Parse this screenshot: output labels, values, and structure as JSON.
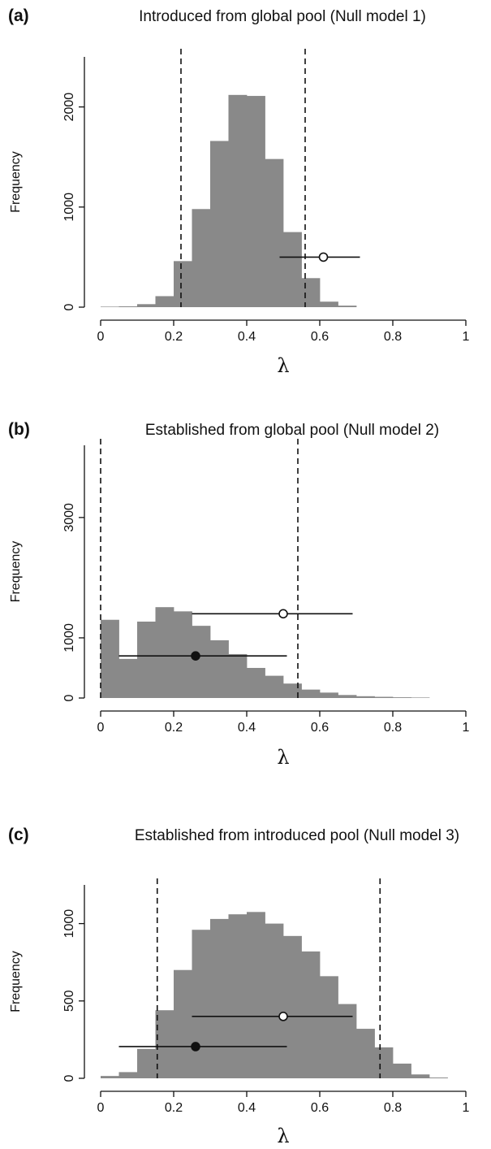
{
  "chart_data": [
    {
      "type": "bar",
      "letter": "(a)",
      "title": "Introduced from global pool (Null model 1)",
      "ylabel": "Frequency",
      "xlabel": "λ",
      "xlim": [
        0,
        1
      ],
      "ylim": [
        0,
        2500
      ],
      "xticks": [
        0,
        0.2,
        0.4,
        0.6,
        0.8,
        1
      ],
      "xtick_labels": [
        "0",
        "0.2",
        "0.4",
        "0.6",
        "0.8",
        "1"
      ],
      "yticks": [
        0,
        1000,
        2000
      ],
      "ytick_labels": [
        "0",
        "1000",
        "2000"
      ],
      "bin_start": 0.0,
      "bin_width": 0.05,
      "counts": [
        5,
        8,
        30,
        110,
        460,
        980,
        1660,
        2120,
        2110,
        1480,
        750,
        290,
        55,
        15
      ],
      "dashed_lines": [
        0.22,
        0.56
      ],
      "points": [
        {
          "x": 0.61,
          "y": 500,
          "xmin": 0.49,
          "xmax": 0.71,
          "filled": false
        }
      ]
    },
    {
      "type": "bar",
      "letter": "(b)",
      "title": "Established from global pool (Null model 2)",
      "ylabel": "Frequency",
      "xlabel": "λ",
      "xlim": [
        0,
        1
      ],
      "ylim": [
        0,
        4200
      ],
      "xticks": [
        0,
        0.2,
        0.4,
        0.6,
        0.8,
        1
      ],
      "xtick_labels": [
        "0",
        "0.2",
        "0.4",
        "0.6",
        "0.8",
        "1"
      ],
      "yticks": [
        0,
        1000,
        3000
      ],
      "ytick_labels": [
        "0",
        "1000",
        "3000"
      ],
      "bin_start": 0.0,
      "bin_width": 0.05,
      "counts": [
        1300,
        650,
        1270,
        1510,
        1440,
        1200,
        960,
        730,
        500,
        370,
        240,
        140,
        90,
        50,
        30,
        20,
        12,
        8
      ],
      "dashed_lines": [
        0.0,
        0.54
      ],
      "points": [
        {
          "x": 0.5,
          "y": 1400,
          "xmin": 0.25,
          "xmax": 0.69,
          "filled": false
        },
        {
          "x": 0.26,
          "y": 700,
          "xmin": 0.05,
          "xmax": 0.51,
          "filled": true
        }
      ]
    },
    {
      "type": "bar",
      "letter": "(c)",
      "title": "Established from introduced pool (Null model 3)",
      "ylabel": "Frequency",
      "xlabel": "λ",
      "xlim": [
        0,
        1
      ],
      "ylim": [
        0,
        1250
      ],
      "xticks": [
        0,
        0.2,
        0.4,
        0.6,
        0.8,
        1
      ],
      "xtick_labels": [
        "0",
        "0.2",
        "0.4",
        "0.6",
        "0.8",
        "1"
      ],
      "yticks": [
        0,
        500,
        1000
      ],
      "ytick_labels": [
        "0",
        "500",
        "1000"
      ],
      "bin_start": 0.0,
      "bin_width": 0.05,
      "counts": [
        15,
        40,
        190,
        440,
        700,
        960,
        1030,
        1060,
        1075,
        1000,
        920,
        820,
        660,
        480,
        320,
        200,
        95,
        25,
        5
      ],
      "dashed_lines": [
        0.155,
        0.765
      ],
      "points": [
        {
          "x": 0.5,
          "y": 400,
          "xmin": 0.25,
          "xmax": 0.69,
          "filled": false
        },
        {
          "x": 0.26,
          "y": 205,
          "xmin": 0.05,
          "xmax": 0.51,
          "filled": true
        }
      ]
    }
  ]
}
